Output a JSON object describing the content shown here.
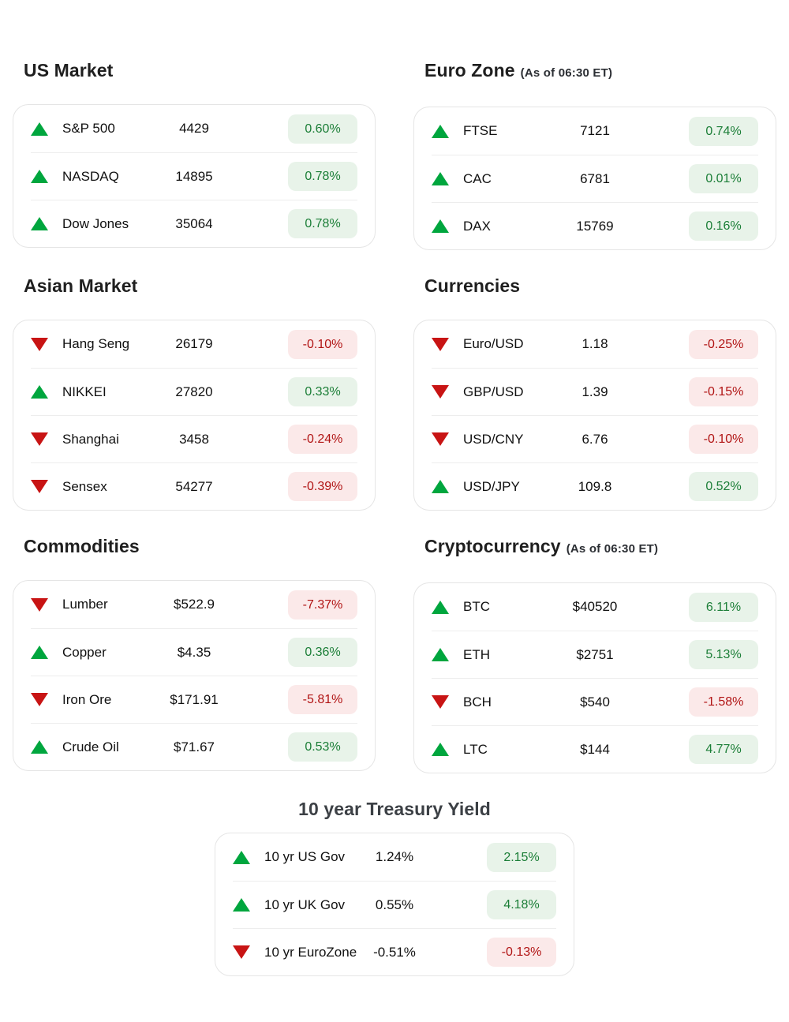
{
  "colors": {
    "up": "#00a63e",
    "down": "#c81414",
    "badge_up_bg": "#e8f3e9",
    "badge_up_text": "#1b7e37",
    "badge_down_bg": "#fbe9e9",
    "badge_down_text": "#b11414",
    "card_border": "#e5e5e5",
    "divider": "#ededed",
    "title": "#1f1f1f"
  },
  "sections": [
    {
      "title": "US Market",
      "subtitle": "",
      "rows": [
        {
          "label": "S&P 500",
          "value": "4429",
          "change": "0.60%",
          "direction": "up"
        },
        {
          "label": "NASDAQ",
          "value": "14895",
          "change": "0.78%",
          "direction": "up"
        },
        {
          "label": "Dow Jones",
          "value": "35064",
          "change": "0.78%",
          "direction": "up"
        }
      ]
    },
    {
      "title": "Euro Zone",
      "subtitle": "(As of 06:30 ET)",
      "rows": [
        {
          "label": "FTSE",
          "value": "7121",
          "change": "0.74%",
          "direction": "up"
        },
        {
          "label": "CAC",
          "value": "6781",
          "change": "0.01%",
          "direction": "up"
        },
        {
          "label": "DAX",
          "value": "15769",
          "change": "0.16%",
          "direction": "up"
        }
      ]
    },
    {
      "title": "Asian Market",
      "subtitle": "",
      "rows": [
        {
          "label": "Hang Seng",
          "value": "26179",
          "change": "-0.10%",
          "direction": "down"
        },
        {
          "label": "NIKKEI",
          "value": "27820",
          "change": "0.33%",
          "direction": "up"
        },
        {
          "label": "Shanghai",
          "value": "3458",
          "change": "-0.24%",
          "direction": "down"
        },
        {
          "label": "Sensex",
          "value": "54277",
          "change": "-0.39%",
          "direction": "down"
        }
      ]
    },
    {
      "title": "Currencies",
      "subtitle": "",
      "rows": [
        {
          "label": "Euro/USD",
          "value": "1.18",
          "change": "-0.25%",
          "direction": "down"
        },
        {
          "label": "GBP/USD",
          "value": "1.39",
          "change": "-0.15%",
          "direction": "down"
        },
        {
          "label": "USD/CNY",
          "value": "6.76",
          "change": "-0.10%",
          "direction": "down"
        },
        {
          "label": "USD/JPY",
          "value": "109.8",
          "change": "0.52%",
          "direction": "up"
        }
      ]
    },
    {
      "title": "Commodities",
      "subtitle": "",
      "rows": [
        {
          "label": "Lumber",
          "value": "$522.9",
          "change": "-7.37%",
          "direction": "down"
        },
        {
          "label": "Copper",
          "value": "$4.35",
          "change": "0.36%",
          "direction": "up"
        },
        {
          "label": "Iron Ore",
          "value": "$171.91",
          "change": "-5.81%",
          "direction": "down"
        },
        {
          "label": "Crude Oil",
          "value": "$71.67",
          "change": "0.53%",
          "direction": "up"
        }
      ]
    },
    {
      "title": "Cryptocurrency",
      "subtitle": "(As of 06:30 ET)",
      "rows": [
        {
          "label": "BTC",
          "value": "$40520",
          "change": "6.11%",
          "direction": "up"
        },
        {
          "label": "ETH",
          "value": "$2751",
          "change": "5.13%",
          "direction": "up"
        },
        {
          "label": "BCH",
          "value": "$540",
          "change": "-1.58%",
          "direction": "down"
        },
        {
          "label": "LTC",
          "value": "$144",
          "change": "4.77%",
          "direction": "up"
        }
      ]
    },
    {
      "title": "10 year Treasury Yield",
      "subtitle": "",
      "rows": [
        {
          "label": "10 yr US Gov",
          "value": "1.24%",
          "change": "2.15%",
          "direction": "up"
        },
        {
          "label": "10 yr UK Gov",
          "value": "0.55%",
          "change": "4.18%",
          "direction": "up"
        },
        {
          "label": "10 yr EuroZone",
          "value": "-0.51%",
          "change": "-0.13%",
          "direction": "down"
        }
      ]
    }
  ]
}
